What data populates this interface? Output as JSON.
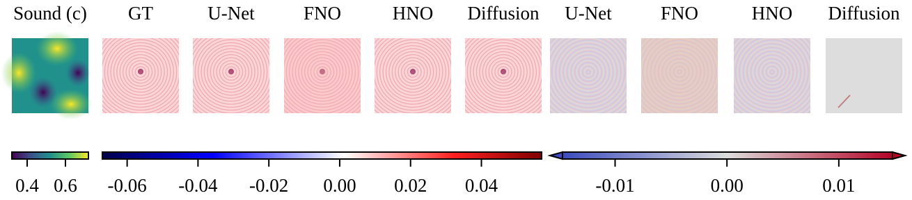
{
  "panels": [
    {
      "title": "Sound (c)"
    },
    {
      "title": "GT"
    },
    {
      "title": "U-Net"
    },
    {
      "title": "FNO"
    },
    {
      "title": "HNO"
    },
    {
      "title": "Diffusion"
    },
    {
      "title": "U-Net"
    },
    {
      "title": "FNO"
    },
    {
      "title": "HNO"
    },
    {
      "title": "Diffusion"
    }
  ],
  "colorbars": [
    {
      "lim": [
        0.32,
        0.72
      ],
      "ticks": [
        0.4,
        0.6
      ]
    },
    {
      "lim": [
        -0.067,
        0.057
      ],
      "ticks": [
        -0.06,
        -0.04,
        -0.02,
        {
          "value": 0,
          "label": "0.00"
        },
        0.02,
        0.04
      ]
    },
    {
      "lim": [
        -0.0147,
        0.0148
      ],
      "ticks": [
        -0.01,
        {
          "value": 0,
          "label": "0.00"
        },
        0.01
      ]
    }
  ]
}
